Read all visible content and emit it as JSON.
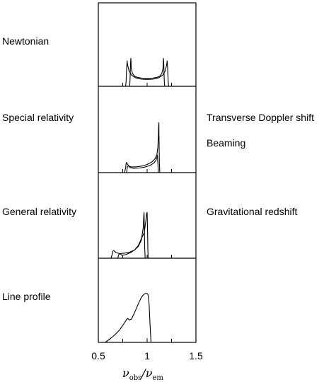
{
  "panels": [
    {
      "left_label": "Newtonian",
      "right_labels": []
    },
    {
      "left_label": "Special relativity",
      "right_labels": [
        "Transverse Doppler shift",
        "Beaming"
      ]
    },
    {
      "left_label": "General relativity",
      "right_labels": [
        "Gravitational redshift"
      ]
    },
    {
      "left_label": "Line profile",
      "right_labels": []
    }
  ],
  "chart_data": {
    "type": "line",
    "panel_count": 4,
    "shared_x_axis": true,
    "xlim": [
      0.5,
      1.5
    ],
    "xticks": [
      0.5,
      1,
      1.5
    ],
    "xtick_labels": [
      "0.5",
      "1",
      "1.5"
    ],
    "xlabel_symbol": "ν",
    "xlabel_num_sub": "obs",
    "xlabel_den_sub": "em",
    "minor_ticks": [
      0.75,
      1.25
    ],
    "series": [
      {
        "panel": 0,
        "values": [
          [
            0.82,
            0
          ],
          [
            0.825,
            0.12
          ],
          [
            0.83,
            0.45
          ],
          [
            0.833,
            0.55
          ],
          [
            0.838,
            0.35
          ],
          [
            0.85,
            0.25
          ],
          [
            0.87,
            0.2
          ],
          [
            0.9,
            0.175
          ],
          [
            0.95,
            0.16
          ],
          [
            1.0,
            0.155
          ],
          [
            1.05,
            0.16
          ],
          [
            1.1,
            0.175
          ],
          [
            1.13,
            0.2
          ],
          [
            1.15,
            0.25
          ],
          [
            1.162,
            0.35
          ],
          [
            1.167,
            0.55
          ],
          [
            1.17,
            0.45
          ],
          [
            1.175,
            0.12
          ],
          [
            1.18,
            0
          ]
        ]
      },
      {
        "panel": 0,
        "values": [
          [
            0.78,
            0
          ],
          [
            0.785,
            0.1
          ],
          [
            0.79,
            0.35
          ],
          [
            0.795,
            0.5
          ],
          [
            0.8,
            0.42
          ],
          [
            0.815,
            0.3
          ],
          [
            0.84,
            0.22
          ],
          [
            0.88,
            0.17
          ],
          [
            0.94,
            0.14
          ],
          [
            1.0,
            0.135
          ],
          [
            1.06,
            0.14
          ],
          [
            1.12,
            0.17
          ],
          [
            1.16,
            0.22
          ],
          [
            1.185,
            0.3
          ],
          [
            1.2,
            0.42
          ],
          [
            1.205,
            0.5
          ],
          [
            1.21,
            0.35
          ],
          [
            1.215,
            0.1
          ],
          [
            1.22,
            0
          ]
        ]
      },
      {
        "panel": 1,
        "values": [
          [
            0.77,
            0.01
          ],
          [
            0.78,
            0.1
          ],
          [
            0.785,
            0.18
          ],
          [
            0.79,
            0.2
          ],
          [
            0.8,
            0.16
          ],
          [
            0.82,
            0.12
          ],
          [
            0.85,
            0.11
          ],
          [
            0.9,
            0.115
          ],
          [
            0.95,
            0.13
          ],
          [
            1.0,
            0.16
          ],
          [
            1.05,
            0.21
          ],
          [
            1.08,
            0.27
          ],
          [
            1.1,
            0.35
          ],
          [
            1.11,
            0.5
          ],
          [
            1.115,
            0.72
          ],
          [
            1.118,
            0.92
          ],
          [
            1.12,
            0.98
          ],
          [
            1.122,
            0.7
          ],
          [
            1.125,
            0.2
          ],
          [
            1.13,
            0
          ]
        ]
      },
      {
        "panel": 1,
        "values": [
          [
            0.79,
            0
          ],
          [
            0.795,
            0.08
          ],
          [
            0.8,
            0.12
          ],
          [
            0.81,
            0.13
          ],
          [
            0.825,
            0.1
          ],
          [
            0.86,
            0.085
          ],
          [
            0.92,
            0.09
          ],
          [
            0.98,
            0.11
          ],
          [
            1.03,
            0.14
          ],
          [
            1.07,
            0.19
          ],
          [
            1.09,
            0.24
          ],
          [
            1.1,
            0.3
          ],
          [
            1.105,
            0.34
          ],
          [
            1.108,
            0.25
          ],
          [
            1.112,
            0.1
          ],
          [
            1.115,
            0
          ]
        ]
      },
      {
        "panel": 2,
        "values": [
          [
            0.63,
            0
          ],
          [
            0.64,
            0.06
          ],
          [
            0.65,
            0.14
          ],
          [
            0.66,
            0.15
          ],
          [
            0.68,
            0.11
          ],
          [
            0.72,
            0.09
          ],
          [
            0.77,
            0.1
          ],
          [
            0.82,
            0.12
          ],
          [
            0.87,
            0.16
          ],
          [
            0.91,
            0.23
          ],
          [
            0.94,
            0.35
          ],
          [
            0.96,
            0.6
          ],
          [
            0.965,
            0.82
          ],
          [
            0.968,
            0.9
          ],
          [
            0.972,
            0.55
          ],
          [
            0.975,
            0.2
          ],
          [
            0.98,
            0
          ]
        ]
      },
      {
        "panel": 2,
        "values": [
          [
            0.7,
            0
          ],
          [
            0.705,
            0.05
          ],
          [
            0.715,
            0.09
          ],
          [
            0.725,
            0.08
          ],
          [
            0.74,
            0.06
          ],
          [
            0.78,
            0.07
          ],
          [
            0.83,
            0.11
          ],
          [
            0.87,
            0.16
          ],
          [
            0.91,
            0.25
          ],
          [
            0.94,
            0.38
          ],
          [
            0.97,
            0.5
          ],
          [
            0.985,
            0.7
          ],
          [
            0.995,
            0.88
          ],
          [
            1.0,
            0.9
          ],
          [
            1.004,
            0.55
          ],
          [
            1.007,
            0.2
          ],
          [
            1.01,
            0
          ]
        ]
      },
      {
        "panel": 3,
        "values": [
          [
            0.57,
            0
          ],
          [
            0.62,
            0.07
          ],
          [
            0.67,
            0.15
          ],
          [
            0.72,
            0.25
          ],
          [
            0.76,
            0.36
          ],
          [
            0.79,
            0.45
          ],
          [
            0.8,
            0.47
          ],
          [
            0.82,
            0.44
          ],
          [
            0.84,
            0.46
          ],
          [
            0.87,
            0.58
          ],
          [
            0.91,
            0.76
          ],
          [
            0.94,
            0.88
          ],
          [
            0.96,
            0.93
          ],
          [
            0.98,
            0.96
          ],
          [
            1.0,
            0.96
          ],
          [
            1.01,
            0.93
          ],
          [
            1.02,
            0.75
          ],
          [
            1.03,
            0.35
          ],
          [
            1.04,
            0
          ]
        ]
      }
    ]
  }
}
